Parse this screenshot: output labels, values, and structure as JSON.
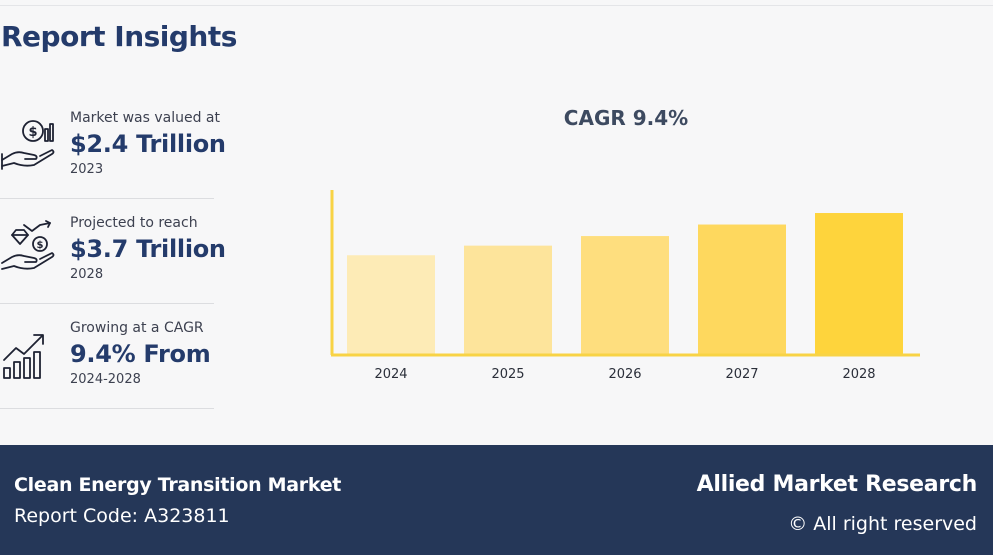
{
  "header": {
    "title": "Report Insights"
  },
  "stats": [
    {
      "icon": "money-hand-icon",
      "caption": "Market was valued at",
      "value": "$2.4 Trillion",
      "sub": "2023"
    },
    {
      "icon": "diamond-growth-hand-icon",
      "caption": "Projected to reach",
      "value": "$3.7 Trillion",
      "sub": "2028"
    },
    {
      "icon": "growth-chart-icon",
      "caption": "Growing at a CAGR",
      "value": "9.4% From",
      "sub": "2024-2028"
    }
  ],
  "chart_data": {
    "type": "bar",
    "title": "CAGR 9.4%",
    "categories": [
      "2024",
      "2025",
      "2026",
      "2027",
      "2028"
    ],
    "values": [
      2.6,
      2.85,
      3.1,
      3.4,
      3.7
    ],
    "ylim": [
      0,
      4.3
    ],
    "xlabel": "",
    "ylabel": "",
    "grid": false,
    "colors": [
      "#fdebb6",
      "#fde49b",
      "#fede7e",
      "#fed85e",
      "#fed43c"
    ],
    "axis_color": "#f8d345"
  },
  "footer": {
    "market_name": "Clean Energy Transition Market",
    "report_code": "Report Code: A323811",
    "brand": "Allied Market Research",
    "rights": "© All right reserved"
  }
}
